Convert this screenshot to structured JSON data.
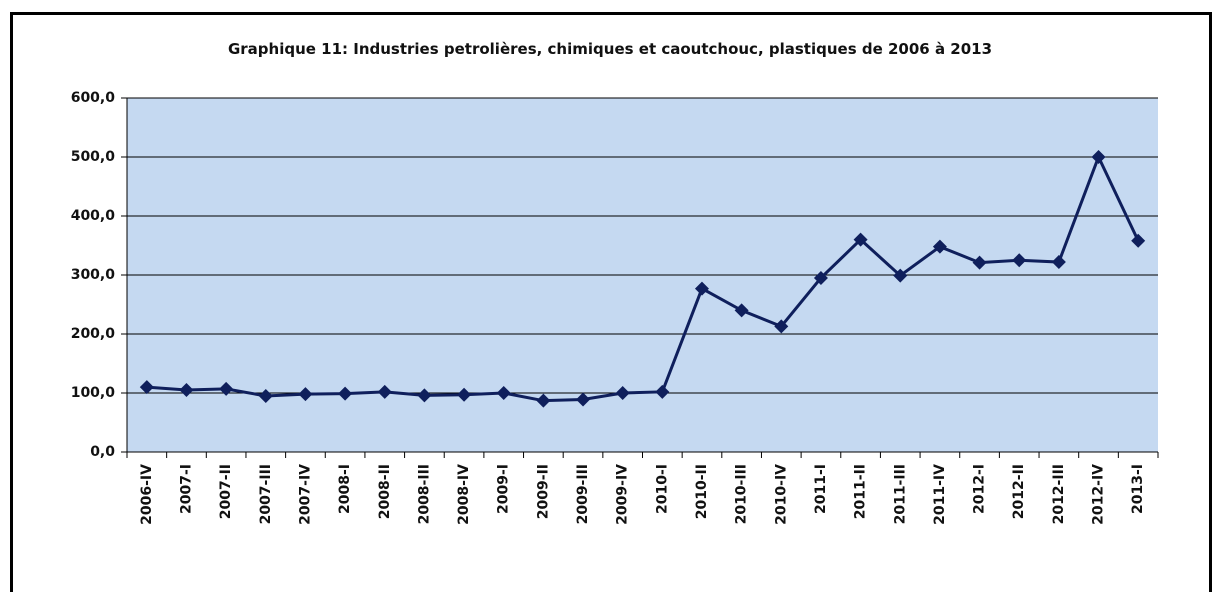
{
  "chart_data": {
    "type": "line",
    "title": "Graphique 11: Industries petrolières, chimiques et caoutchouc, plastiques de 2006 à 2013",
    "categories": [
      "2006-IV",
      "2007-I",
      "2007-II",
      "2007-III",
      "2007-IV",
      "2008-I",
      "2008-II",
      "2008-III",
      "2008-IV",
      "2009-I",
      "2009-II",
      "2009-III",
      "2009-IV",
      "2010-I",
      "2010-II",
      "2010-III",
      "2010-IV",
      "2011-I",
      "2011-II",
      "2011-III",
      "2011-IV",
      "2012-I",
      "2012-II",
      "2012-III",
      "2012-IV",
      "2013-I"
    ],
    "values": [
      110,
      105,
      107,
      95,
      98,
      99,
      102,
      96,
      97,
      100,
      87,
      89,
      100,
      102,
      277,
      240,
      213,
      295,
      360,
      299,
      348,
      321,
      325,
      322,
      500,
      358
    ],
    "color": "#0f1f5c",
    "ylim": [
      0,
      600
    ],
    "yticks": [
      {
        "value": 0,
        "label": "0,0"
      },
      {
        "value": 100,
        "label": "100,0"
      },
      {
        "value": 200,
        "label": "200,0"
      },
      {
        "value": 300,
        "label": "300,0"
      },
      {
        "value": 400,
        "label": "400,0"
      },
      {
        "value": 500,
        "label": "500,0"
      },
      {
        "value": 600,
        "label": "600,0"
      }
    ],
    "grid": true
  }
}
